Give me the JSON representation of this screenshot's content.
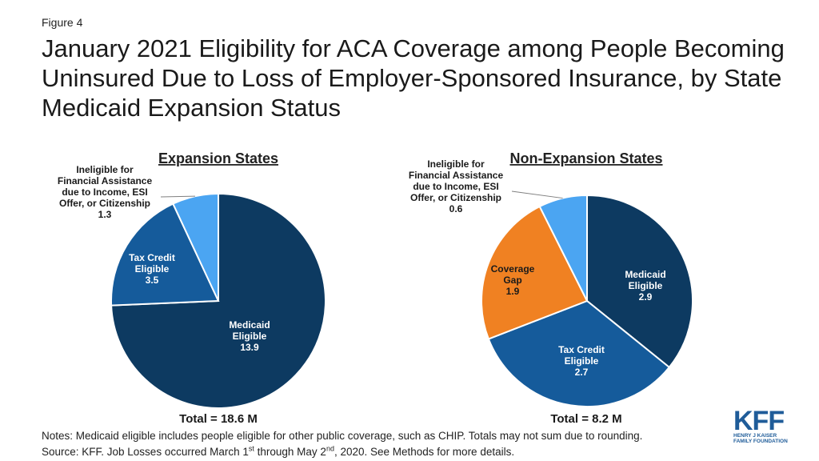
{
  "figure_label": "Figure 4",
  "title": "January 2021 Eligibility for ACA Coverage among People Becoming Uninsured Due to Loss of Employer-Sponsored Insurance, by State Medicaid Expansion Status",
  "colors": {
    "medicaid": "#0d3a61",
    "tax_credit": "#155b9b",
    "coverage_gap": "#f08122",
    "ineligible": "#4ba5f2"
  },
  "chart_data": [
    {
      "type": "pie",
      "title": "Expansion States",
      "total_label": "Total = 18.6 M",
      "slices": [
        {
          "key": "medicaid",
          "label_lines": [
            "Medicaid",
            "Eligible"
          ],
          "value": 13.9,
          "value_label": "13.9"
        },
        {
          "key": "tax_credit",
          "label_lines": [
            "Tax Credit",
            "Eligible"
          ],
          "value": 3.5,
          "value_label": "3.5"
        },
        {
          "key": "ineligible",
          "label_lines": [
            "Ineligible for",
            "Financial Assistance",
            "due to Income, ESI",
            "Offer, or Citizenship"
          ],
          "value": 1.3,
          "value_label": "1.3"
        }
      ]
    },
    {
      "type": "pie",
      "title": "Non-Expansion States",
      "total_label": "Total = 8.2 M",
      "slices": [
        {
          "key": "medicaid",
          "label_lines": [
            "Medicaid",
            "Eligible"
          ],
          "value": 2.9,
          "value_label": "2.9"
        },
        {
          "key": "tax_credit",
          "label_lines": [
            "Tax Credit",
            "Eligible"
          ],
          "value": 2.7,
          "value_label": "2.7"
        },
        {
          "key": "coverage_gap",
          "label_lines": [
            "Coverage",
            "Gap"
          ],
          "value": 1.9,
          "value_label": "1.9"
        },
        {
          "key": "ineligible",
          "label_lines": [
            "Ineligible for",
            "Financial Assistance",
            "due to Income, ESI",
            "Offer, or Citizenship"
          ],
          "value": 0.6,
          "value_label": "0.6"
        }
      ]
    }
  ],
  "notes": {
    "line1": "Notes: Medicaid eligible includes people eligible for other public coverage, such as CHIP. Totals may not sum due to rounding.",
    "line2_a": "Source: KFF. Job Losses occurred March 1",
    "line2_sup1": "st",
    "line2_b": " through May 2",
    "line2_sup2": "nd",
    "line2_c": ", 2020. See Methods for more details."
  },
  "logo": {
    "main": "KFF",
    "sub1": "HENRY J KAISER",
    "sub2": "FAMILY FOUNDATION"
  }
}
